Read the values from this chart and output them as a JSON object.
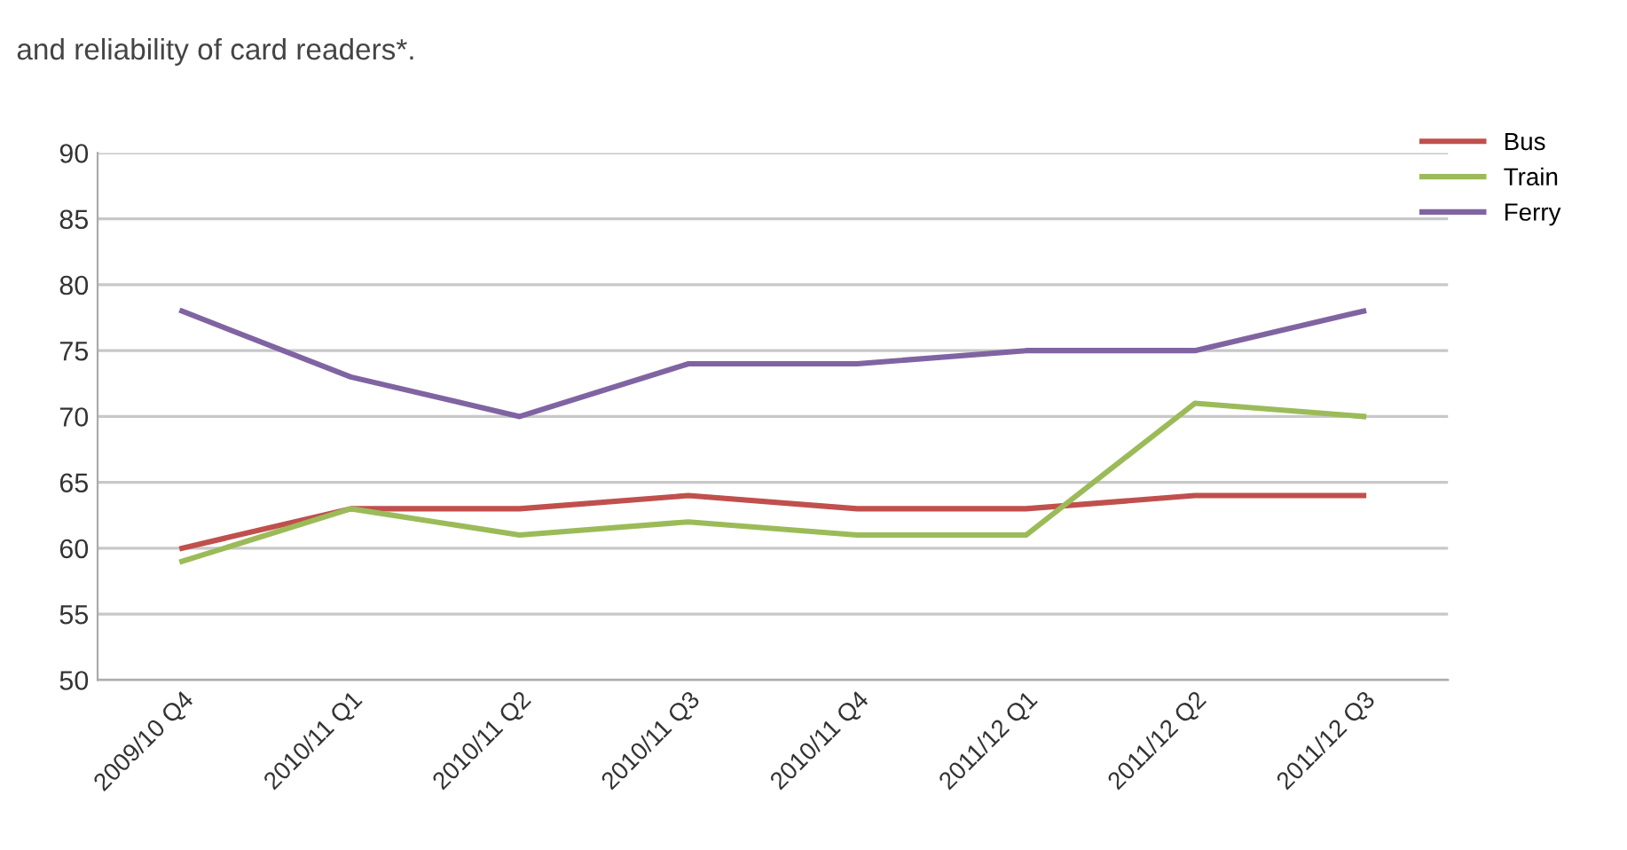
{
  "chart_data": {
    "type": "line",
    "title": "and reliability of card readers*.",
    "categories": [
      "2009/10 Q4",
      "2010/11 Q1",
      "2010/11 Q2",
      "2010/11 Q3",
      "2010/11 Q4",
      "2011/12 Q1",
      "2011/12 Q2",
      "2011/12 Q3"
    ],
    "series": [
      {
        "name": "Bus",
        "color": "#c0504d",
        "values": [
          60,
          63,
          63,
          64,
          63,
          63,
          64,
          64
        ]
      },
      {
        "name": "Train",
        "color": "#9bbb59",
        "values": [
          59,
          63,
          61,
          62,
          61,
          61,
          71,
          70
        ]
      },
      {
        "name": "Ferry",
        "color": "#8064a2",
        "values": [
          78,
          73,
          70,
          74,
          74,
          75,
          75,
          78
        ]
      }
    ],
    "ylim": [
      50,
      90
    ],
    "yticks": [
      50,
      55,
      60,
      65,
      70,
      75,
      80,
      85,
      90
    ],
    "grid": "y",
    "legend": "top right",
    "marker": "none",
    "line_style": "solid"
  }
}
